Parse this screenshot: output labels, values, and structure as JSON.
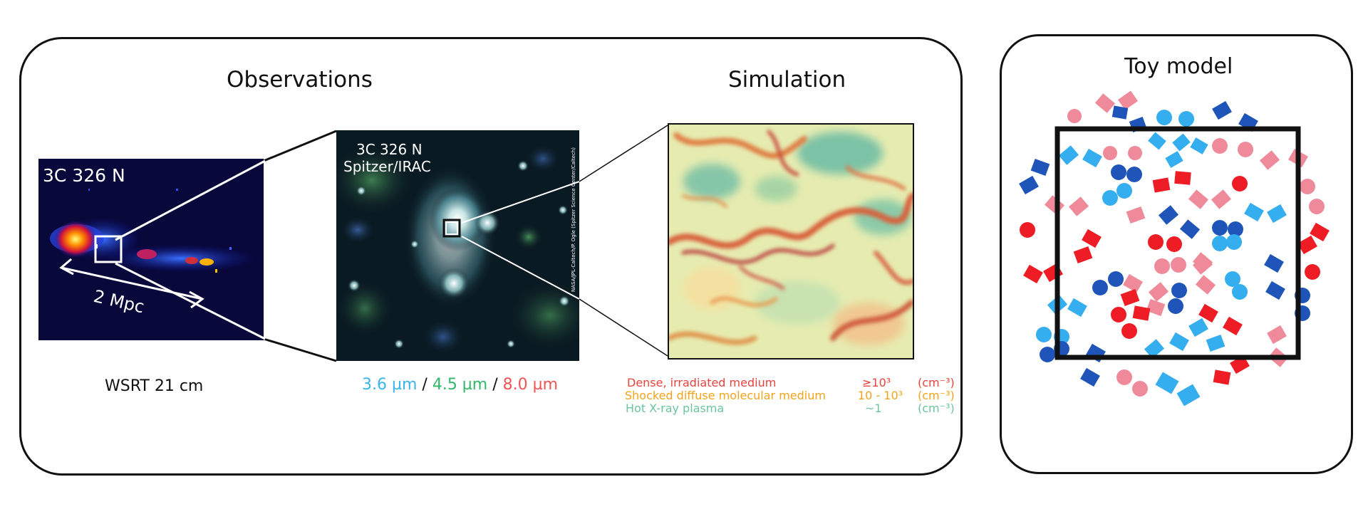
{
  "observations": {
    "title": "Observations",
    "radio": {
      "label": "3C 326 N",
      "scale_label": "2 Mpc",
      "caption": "WSRT 21 cm"
    },
    "ir": {
      "label_line1": "3C 326 N",
      "label_line2": "Spitzer/IRAC",
      "credit": "NASA/JPL-Caltech/P. Ogle (Spitzer Science Center/Caltech)",
      "wavelengths": [
        {
          "text": "3.6 µm",
          "color": "#3ab4ea"
        },
        {
          "text": " / ",
          "color": "#111111"
        },
        {
          "text": "4.5 µm",
          "color": "#2fb86a"
        },
        {
          "text": " / ",
          "color": "#111111"
        },
        {
          "text": "8.0 µm",
          "color": "#ee5555"
        }
      ]
    }
  },
  "simulation": {
    "title": "Simulation",
    "legend": [
      {
        "name": "Dense, irradiated medium",
        "value": "≥10³",
        "unit": "(cm⁻³)",
        "color": "#e8433c"
      },
      {
        "name": "Shocked diffuse molecular medium",
        "value": "10 - 10³",
        "unit": "(cm⁻³)",
        "color": "#f2a31a"
      },
      {
        "name": "Hot X-ray plasma",
        "value": "~1",
        "unit": "(cm⁻³)",
        "color": "#6cc49a"
      }
    ]
  },
  "toy_model": {
    "title": "Toy model",
    "colors": {
      "red": "#ee1c24",
      "pink": "#ef8a9a",
      "dark_blue": "#1f55b8",
      "light_blue": "#35aef0"
    }
  }
}
